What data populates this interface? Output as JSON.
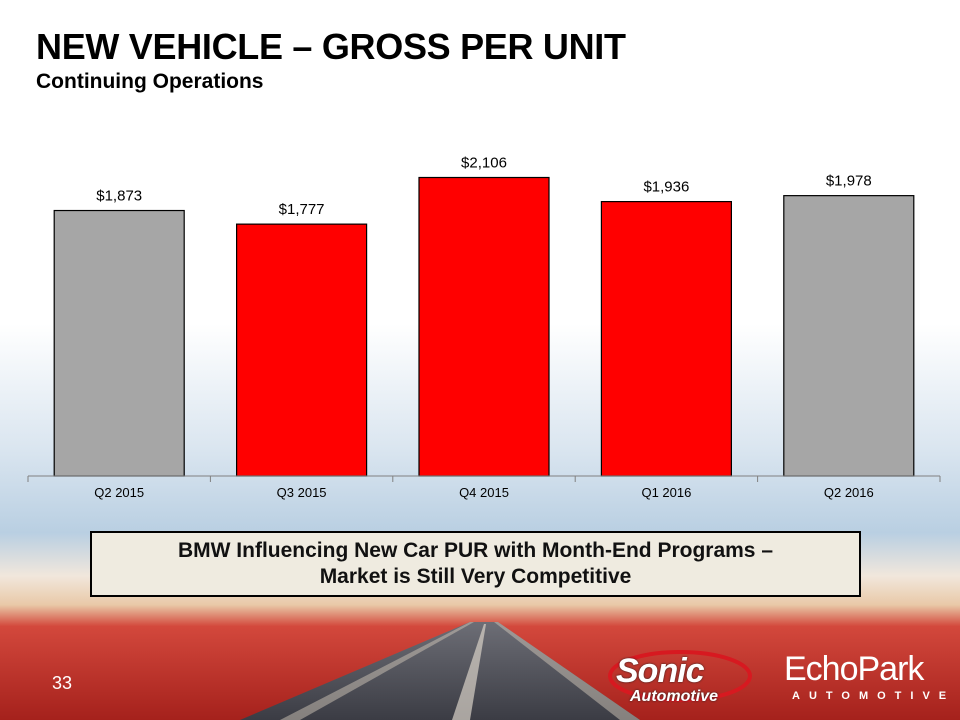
{
  "slide": {
    "title": "NEW VEHICLE – GROSS PER UNIT",
    "subtitle": "Continuing Operations",
    "callout_line1": "BMW Influencing New Car PUR with Month-End Programs –",
    "callout_line2": "Market is Still Very Competitive",
    "page_number": "33"
  },
  "logos": {
    "sonic_name": "Sonic",
    "sonic_sub": "Automotive",
    "echo_name": "EchoPark",
    "echo_sub": "AUTOMOTIVE"
  },
  "colors": {
    "gray_bar": "#a6a6a6",
    "red_bar": "#ff0000",
    "bar_outline": "#000000"
  },
  "chart_data": {
    "type": "bar",
    "title": "",
    "xlabel": "",
    "ylabel": "",
    "categories": [
      "Q2 2015",
      "Q3 2015",
      "Q4 2015",
      "Q1 2016",
      "Q2 2016"
    ],
    "values": [
      1873,
      1777,
      2106,
      1936,
      1978
    ],
    "value_labels": [
      "$1,873",
      "$1,777",
      "$2,106",
      "$1,936",
      "$1,978"
    ],
    "bar_colors": [
      "#a6a6a6",
      "#ff0000",
      "#ff0000",
      "#ff0000",
      "#a6a6a6"
    ],
    "ylim": [
      0,
      2300
    ],
    "grid": false,
    "legend": "none"
  }
}
